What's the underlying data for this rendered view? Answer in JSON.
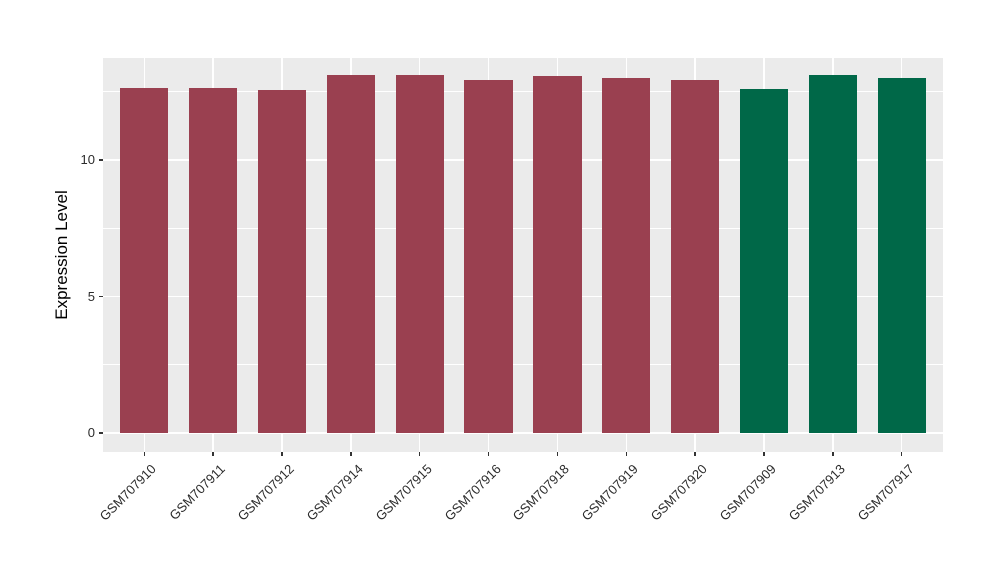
{
  "chart_data": {
    "type": "bar",
    "title": "",
    "xlabel": "",
    "ylabel": "Expression Level",
    "ylim": [
      0,
      13.74
    ],
    "yticks": [
      0,
      5,
      10
    ],
    "yticks_minor": [
      2.5,
      7.5,
      12.5
    ],
    "grid": "on",
    "legend": "none",
    "panel_background": "#EBEBEB",
    "grid_color": "#FFFFFF",
    "axis_text_color": "#2b2b2b",
    "tick_color": "#333333",
    "palette": {
      "red": "#9A4050",
      "green": "#006848"
    },
    "bars": [
      {
        "label": "GSM707910",
        "value": 12.63,
        "color": "red"
      },
      {
        "label": "GSM707911",
        "value": 12.62,
        "color": "red"
      },
      {
        "label": "GSM707912",
        "value": 12.55,
        "color": "red"
      },
      {
        "label": "GSM707914",
        "value": 13.1,
        "color": "red"
      },
      {
        "label": "GSM707915",
        "value": 13.12,
        "color": "red"
      },
      {
        "label": "GSM707916",
        "value": 12.94,
        "color": "red"
      },
      {
        "label": "GSM707918",
        "value": 13.06,
        "color": "red"
      },
      {
        "label": "GSM707919",
        "value": 13.02,
        "color": "red"
      },
      {
        "label": "GSM707920",
        "value": 12.92,
        "color": "red"
      },
      {
        "label": "GSM707909",
        "value": 12.6,
        "color": "green"
      },
      {
        "label": "GSM707913",
        "value": 13.1,
        "color": "green"
      },
      {
        "label": "GSM707917",
        "value": 13.02,
        "color": "green"
      }
    ]
  }
}
